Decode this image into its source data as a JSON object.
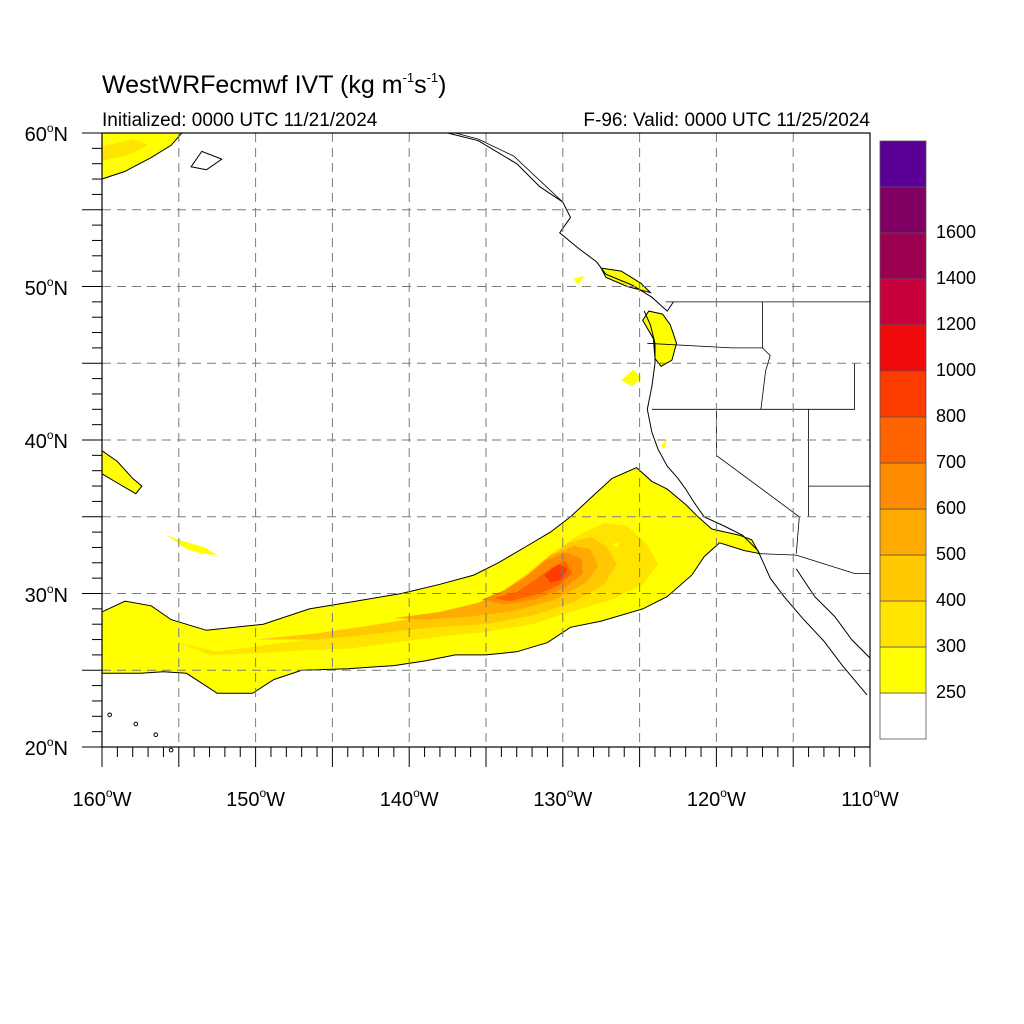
{
  "title": {
    "model": "WestWRFecmwf",
    "variable": "IVT",
    "units_prefix": "(kg m",
    "exp1": "-1",
    "units_mid": "s",
    "exp2": "-1",
    "units_suffix": ")"
  },
  "initialized": "Initialized: 0000 UTC 11/21/2024",
  "valid": "F-96: Valid: 0000 UTC 11/25/2024",
  "map": {
    "lon_range": [
      -160,
      -110
    ],
    "lat_range": [
      20,
      60
    ],
    "grid": "on",
    "lat_labels": [
      {
        "lat": 60,
        "num": "60",
        "sym": "o",
        "hem": "N"
      },
      {
        "lat": 50,
        "num": "50",
        "sym": "o",
        "hem": "N"
      },
      {
        "lat": 40,
        "num": "40",
        "sym": "o",
        "hem": "N"
      },
      {
        "lat": 30,
        "num": "30",
        "sym": "o",
        "hem": "N"
      },
      {
        "lat": 20,
        "num": "20",
        "sym": "o",
        "hem": "N"
      }
    ],
    "lon_labels": [
      {
        "lon": -160,
        "num": "160",
        "sym": "o",
        "hem": "W"
      },
      {
        "lon": -150,
        "num": "150",
        "sym": "o",
        "hem": "W"
      },
      {
        "lon": -140,
        "num": "140",
        "sym": "o",
        "hem": "W"
      },
      {
        "lon": -130,
        "num": "130",
        "sym": "o",
        "hem": "W"
      },
      {
        "lon": -120,
        "num": "120",
        "sym": "o",
        "hem": "W"
      },
      {
        "lon": -110,
        "num": "110",
        "sym": "o",
        "hem": "W"
      }
    ]
  },
  "colorbar": {
    "bins": [
      {
        "color": "#ffffff"
      },
      {
        "color": "#ffff00",
        "label": "250"
      },
      {
        "color": "#ffe400",
        "label": "300"
      },
      {
        "color": "#ffc800",
        "label": "400"
      },
      {
        "color": "#ffaa00",
        "label": "500"
      },
      {
        "color": "#ff8c00",
        "label": "600"
      },
      {
        "color": "#ff6400",
        "label": "700"
      },
      {
        "color": "#ff3c00",
        "label": "800"
      },
      {
        "color": "#f00a0a",
        "label": "1000"
      },
      {
        "color": "#c8003c",
        "label": "1200"
      },
      {
        "color": "#9b0050",
        "label": "1400"
      },
      {
        "color": "#820064",
        "label": "1600"
      },
      {
        "color": "#5a0096"
      }
    ]
  }
}
